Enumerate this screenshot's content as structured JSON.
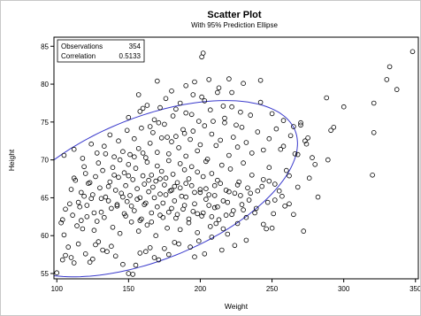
{
  "chart_data": {
    "type": "scatter",
    "title": "Scatter Plot",
    "subtitle": "With 95% Prediction Ellipse",
    "xlabel": "Weight",
    "ylabel": "Height",
    "xlim": [
      98,
      352
    ],
    "ylim": [
      54.3,
      86.2
    ],
    "xticks": [
      100,
      150,
      200,
      250,
      300,
      350
    ],
    "yticks": [
      55,
      60,
      65,
      70,
      75,
      80,
      85
    ],
    "grid": false,
    "stats": [
      {
        "label": "Observations",
        "value": "354"
      },
      {
        "label": "Correlation",
        "value": "0.5133"
      }
    ],
    "stats_placement": "top-left",
    "colors": {
      "markers": "#000000",
      "ellipse": "#3a3acc",
      "frame": "#000000"
    },
    "ellipse": {
      "center": [
        164.5,
        66.2
      ],
      "cov": [
        [
          1780,
          102.9
        ],
        [
          102.9,
          22.6
        ]
      ],
      "confidence": 0.95
    },
    "points": [
      [
        100,
        55.1
      ],
      [
        104,
        56.8
      ],
      [
        106,
        57.4
      ],
      [
        108,
        58.5
      ],
      [
        103,
        61.7
      ],
      [
        105,
        60.1
      ],
      [
        110,
        57.1
      ],
      [
        112,
        56.4
      ],
      [
        115,
        58.9
      ],
      [
        118,
        60.9
      ],
      [
        120,
        57.6
      ],
      [
        123,
        56.5
      ],
      [
        125,
        56.9
      ],
      [
        127,
        58.8
      ],
      [
        129,
        59.2
      ],
      [
        132,
        58.1
      ],
      [
        135,
        57.9
      ],
      [
        138,
        58.6
      ],
      [
        141,
        57.3
      ],
      [
        146,
        56.2
      ],
      [
        150,
        55.0
      ],
      [
        153,
        54.9
      ],
      [
        155,
        56.1
      ],
      [
        158,
        57.7
      ],
      [
        162,
        57.9
      ],
      [
        165,
        58.4
      ],
      [
        168,
        57.1
      ],
      [
        171,
        56.8
      ],
      [
        175,
        58.3
      ],
      [
        178,
        57.5
      ],
      [
        182,
        59.1
      ],
      [
        185,
        58.9
      ],
      [
        104,
        62.1
      ],
      [
        106,
        63.5
      ],
      [
        109,
        64.2
      ],
      [
        111,
        62.7
      ],
      [
        114,
        61.3
      ],
      [
        116,
        63.8
      ],
      [
        119,
        65.2
      ],
      [
        121,
        62.5
      ],
      [
        124,
        64.9
      ],
      [
        126,
        60.7
      ],
      [
        128,
        61.9
      ],
      [
        131,
        63.1
      ],
      [
        133,
        62.4
      ],
      [
        136,
        64.6
      ],
      [
        139,
        61.1
      ],
      [
        142,
        63.9
      ],
      [
        144,
        60.3
      ],
      [
        147,
        62.9
      ],
      [
        149,
        64.5
      ],
      [
        152,
        61.8
      ],
      [
        154,
        63.3
      ],
      [
        157,
        60.6
      ],
      [
        159,
        62.2
      ],
      [
        161,
        64.1
      ],
      [
        163,
        61.4
      ],
      [
        166,
        63.0
      ],
      [
        169,
        60.0
      ],
      [
        172,
        62.7
      ],
      [
        174,
        64.3
      ],
      [
        177,
        61.0
      ],
      [
        180,
        63.6
      ],
      [
        183,
        62.3
      ],
      [
        186,
        60.8
      ],
      [
        189,
        64.0
      ],
      [
        192,
        61.7
      ],
      [
        195,
        63.2
      ],
      [
        198,
        60.4
      ],
      [
        201,
        62.6
      ],
      [
        204,
        64.8
      ],
      [
        207,
        61.2
      ],
      [
        210,
        63.7
      ],
      [
        213,
        62.1
      ],
      [
        216,
        60.9
      ],
      [
        219,
        64.4
      ],
      [
        222,
        62.8
      ],
      [
        226,
        61.6
      ],
      [
        230,
        63.4
      ],
      [
        234,
        64.7
      ],
      [
        110,
        66.1
      ],
      [
        113,
        67.3
      ],
      [
        117,
        65.7
      ],
      [
        120,
        68.2
      ],
      [
        122,
        66.9
      ],
      [
        125,
        65.4
      ],
      [
        127,
        67.8
      ],
      [
        130,
        66.3
      ],
      [
        132,
        68.6
      ],
      [
        134,
        65.1
      ],
      [
        137,
        67.1
      ],
      [
        139,
        69.0
      ],
      [
        141,
        66.0
      ],
      [
        143,
        67.7
      ],
      [
        145,
        65.6
      ],
      [
        147,
        68.3
      ],
      [
        148,
        66.6
      ],
      [
        150,
        69.4
      ],
      [
        151,
        65.3
      ],
      [
        153,
        67.4
      ],
      [
        155,
        68.9
      ],
      [
        156,
        66.2
      ],
      [
        158,
        65.0
      ],
      [
        160,
        67.9
      ],
      [
        161,
        66.8
      ],
      [
        163,
        69.7
      ],
      [
        164,
        65.8
      ],
      [
        166,
        68.0
      ],
      [
        167,
        66.4
      ],
      [
        169,
        67.2
      ],
      [
        170,
        69.2
      ],
      [
        172,
        65.5
      ],
      [
        173,
        68.5
      ],
      [
        175,
        66.7
      ],
      [
        176,
        67.6
      ],
      [
        178,
        69.9
      ],
      [
        179,
        65.9
      ],
      [
        181,
        68.1
      ],
      [
        182,
        66.5
      ],
      [
        184,
        67.0
      ],
      [
        186,
        69.5
      ],
      [
        187,
        65.2
      ],
      [
        189,
        68.7
      ],
      [
        190,
        66.9
      ],
      [
        192,
        67.5
      ],
      [
        194,
        69.1
      ],
      [
        196,
        65.7
      ],
      [
        198,
        68.4
      ],
      [
        200,
        66.1
      ],
      [
        202,
        67.8
      ],
      [
        204,
        69.8
      ],
      [
        206,
        65.4
      ],
      [
        208,
        68.2
      ],
      [
        210,
        66.6
      ],
      [
        212,
        67.3
      ],
      [
        215,
        69.3
      ],
      [
        218,
        66.0
      ],
      [
        221,
        68.8
      ],
      [
        224,
        65.6
      ],
      [
        227,
        67.1
      ],
      [
        230,
        69.6
      ],
      [
        233,
        66.3
      ],
      [
        236,
        68.0
      ],
      [
        240,
        65.9
      ],
      [
        244,
        67.4
      ],
      [
        248,
        69.0
      ],
      [
        252,
        66.8
      ],
      [
        257,
        65.2
      ],
      [
        262,
        67.9
      ],
      [
        268,
        66.4
      ],
      [
        105,
        70.6
      ],
      [
        112,
        71.4
      ],
      [
        118,
        70.2
      ],
      [
        124,
        72.1
      ],
      [
        128,
        70.9
      ],
      [
        133,
        71.8
      ],
      [
        137,
        73.3
      ],
      [
        140,
        70.4
      ],
      [
        143,
        72.5
      ],
      [
        146,
        71.1
      ],
      [
        149,
        73.9
      ],
      [
        151,
        70.7
      ],
      [
        154,
        72.8
      ],
      [
        157,
        71.5
      ],
      [
        159,
        74.2
      ],
      [
        162,
        70.3
      ],
      [
        165,
        72.2
      ],
      [
        167,
        73.6
      ],
      [
        170,
        71.0
      ],
      [
        173,
        72.9
      ],
      [
        175,
        74.7
      ],
      [
        178,
        70.8
      ],
      [
        180,
        72.4
      ],
      [
        183,
        73.1
      ],
      [
        185,
        71.6
      ],
      [
        188,
        74.0
      ],
      [
        190,
        70.5
      ],
      [
        193,
        72.7
      ],
      [
        195,
        73.8
      ],
      [
        198,
        71.2
      ],
      [
        200,
        72.0
      ],
      [
        203,
        74.5
      ],
      [
        205,
        70.1
      ],
      [
        208,
        73.4
      ],
      [
        211,
        71.9
      ],
      [
        214,
        72.6
      ],
      [
        217,
        74.9
      ],
      [
        220,
        70.6
      ],
      [
        223,
        73.0
      ],
      [
        226,
        71.7
      ],
      [
        229,
        74.3
      ],
      [
        232,
        72.3
      ],
      [
        236,
        70.9
      ],
      [
        240,
        73.7
      ],
      [
        244,
        71.3
      ],
      [
        248,
        72.8
      ],
      [
        253,
        74.1
      ],
      [
        258,
        71.8
      ],
      [
        263,
        73.2
      ],
      [
        268,
        70.7
      ],
      [
        273,
        72.5
      ],
      [
        278,
        70.3
      ],
      [
        150,
        75.6
      ],
      [
        158,
        76.4
      ],
      [
        163,
        77.2
      ],
      [
        168,
        75.3
      ],
      [
        172,
        76.9
      ],
      [
        176,
        78.1
      ],
      [
        181,
        75.8
      ],
      [
        186,
        77.5
      ],
      [
        190,
        76.2
      ],
      [
        195,
        78.6
      ],
      [
        199,
        75.1
      ],
      [
        203,
        77.8
      ],
      [
        207,
        76.6
      ],
      [
        212,
        78.9
      ],
      [
        217,
        75.5
      ],
      [
        222,
        77.0
      ],
      [
        228,
        76.3
      ],
      [
        235,
        75.9
      ],
      [
        242,
        77.6
      ],
      [
        250,
        76.1
      ],
      [
        258,
        75.2
      ],
      [
        265,
        74.4
      ],
      [
        270,
        74.9
      ],
      [
        275,
        72.9
      ],
      [
        157,
        78.6
      ],
      [
        170,
        80.4
      ],
      [
        180,
        79.1
      ],
      [
        190,
        79.8
      ],
      [
        201,
        78.3
      ],
      [
        206,
        80.6
      ],
      [
        213,
        79.5
      ],
      [
        220,
        80.7
      ],
      [
        222,
        78.9
      ],
      [
        230,
        80.1
      ],
      [
        201,
        83.6
      ],
      [
        202,
        84.1
      ],
      [
        196,
        80.3
      ],
      [
        242,
        80.5
      ],
      [
        288,
        78.2
      ],
      [
        293,
        74.3
      ],
      [
        289,
        70.0
      ],
      [
        276,
        67.6
      ],
      [
        282,
        65.1
      ],
      [
        262,
        64.2
      ],
      [
        265,
        62.8
      ],
      [
        272,
        60.6
      ],
      [
        244,
        61.5
      ],
      [
        250,
        61.0
      ],
      [
        321,
        77.5
      ],
      [
        321,
        73.6
      ],
      [
        332,
        82.3
      ],
      [
        337,
        79.3
      ],
      [
        330,
        80.6
      ],
      [
        348,
        84.3
      ],
      [
        320,
        68.0
      ],
      [
        300,
        77.0
      ],
      [
        291,
        73.9
      ],
      [
        280,
        69.4
      ],
      [
        274,
        72.1
      ],
      [
        270,
        74.6
      ],
      [
        266,
        70.8
      ],
      [
        260,
        68.6
      ],
      [
        256,
        71.4
      ],
      [
        252,
        64.7
      ],
      [
        248,
        67.2
      ],
      [
        246,
        60.9
      ],
      [
        238,
        63.0
      ],
      [
        232,
        59.4
      ],
      [
        228,
        65.3
      ],
      [
        224,
        58.7
      ],
      [
        219,
        60.2
      ],
      [
        215,
        58.1
      ],
      [
        211,
        61.6
      ],
      [
        208,
        59.8
      ],
      [
        203,
        57.6
      ],
      [
        199,
        59.3
      ],
      [
        196,
        57.2
      ],
      [
        193,
        58.5
      ],
      [
        112,
        67.6
      ],
      [
        115,
        64.4
      ],
      [
        117,
        62.0
      ],
      [
        119,
        69.1
      ],
      [
        121,
        64.0
      ],
      [
        123,
        67.0
      ],
      [
        126,
        63.0
      ],
      [
        129,
        69.6
      ],
      [
        131,
        64.9
      ],
      [
        134,
        70.8
      ],
      [
        136,
        66.5
      ],
      [
        138,
        63.6
      ],
      [
        140,
        68.0
      ],
      [
        142,
        64.1
      ],
      [
        144,
        70.0
      ],
      [
        146,
        65.1
      ],
      [
        148,
        62.6
      ],
      [
        150,
        67.9
      ],
      [
        152,
        63.9
      ],
      [
        154,
        70.4
      ],
      [
        156,
        64.8
      ],
      [
        158,
        62.0
      ],
      [
        160,
        70.9
      ],
      [
        162,
        64.3
      ],
      [
        164,
        67.3
      ],
      [
        166,
        61.8
      ],
      [
        168,
        65.0
      ],
      [
        170,
        63.8
      ],
      [
        172,
        67.5
      ],
      [
        174,
        62.4
      ],
      [
        176,
        65.4
      ],
      [
        178,
        63.1
      ],
      [
        180,
        66.0
      ],
      [
        182,
        64.6
      ],
      [
        184,
        62.8
      ],
      [
        186,
        66.3
      ],
      [
        188,
        63.5
      ],
      [
        190,
        65.1
      ],
      [
        192,
        62.2
      ],
      [
        194,
        66.6
      ],
      [
        196,
        64.2
      ],
      [
        198,
        62.9
      ],
      [
        200,
        65.7
      ],
      [
        202,
        63.0
      ],
      [
        204,
        66.2
      ],
      [
        206,
        64.0
      ],
      [
        208,
        62.5
      ],
      [
        210,
        65.3
      ],
      [
        212,
        63.8
      ],
      [
        214,
        66.9
      ],
      [
        216,
        64.6
      ],
      [
        218,
        62.7
      ],
      [
        220,
        65.8
      ],
      [
        223,
        63.3
      ],
      [
        226,
        66.7
      ],
      [
        229,
        64.1
      ],
      [
        232,
        62.4
      ],
      [
        235,
        65.6
      ],
      [
        239,
        63.6
      ],
      [
        243,
        66.5
      ],
      [
        247,
        64.4
      ],
      [
        251,
        62.9
      ],
      [
        255,
        65.9
      ],
      [
        259,
        63.9
      ],
      [
        160,
        76.8
      ],
      [
        165,
        74.4
      ],
      [
        171,
        74.9
      ],
      [
        177,
        73.0
      ],
      [
        183,
        76.7
      ],
      [
        189,
        73.5
      ],
      [
        194,
        76.0
      ],
      [
        209,
        75.1
      ],
      [
        216,
        77.1
      ],
      [
        225,
        74.6
      ]
    ]
  }
}
